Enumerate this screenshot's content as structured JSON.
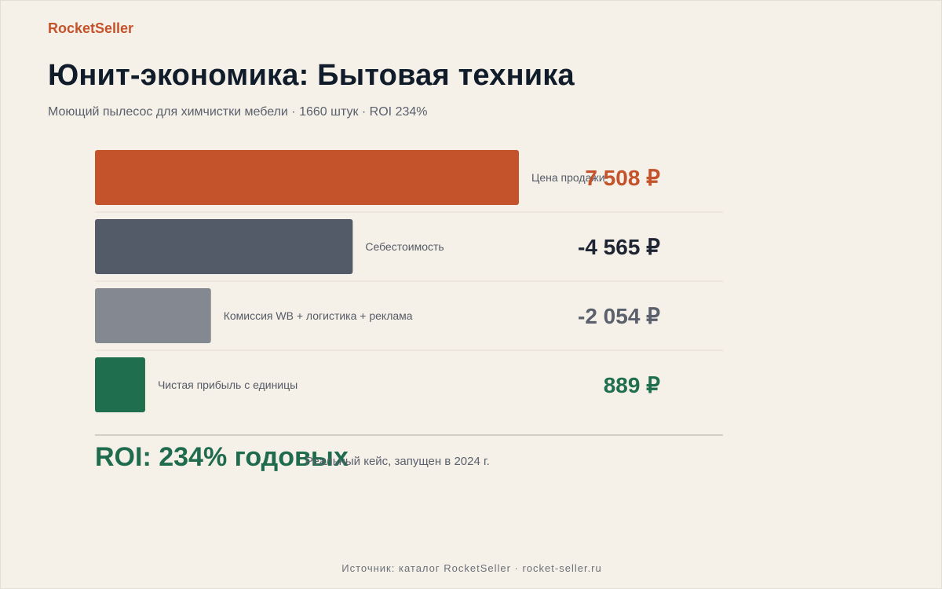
{
  "brand": "RocketSeller",
  "title": "Юнит-экономика: Бытовая техника",
  "subtitle": "Моющий пылесос для химчистки мебели · 1660 штук · ROI 234%",
  "chart_data": {
    "type": "bar",
    "orientation": "horizontal",
    "categories": [
      "Цена продажи",
      "Себестоимость",
      "Комиссия WB + логистика + реклама",
      "Чистая прибыль с единицы"
    ],
    "values": [
      7508,
      4565,
      2054,
      889
    ],
    "value_labels": [
      "7 508 ₽",
      "-4 565 ₽",
      "-2 054 ₽",
      "889 ₽"
    ],
    "colors": [
      "#c4522a",
      "#545b68",
      "#838891",
      "#1f6e4d"
    ],
    "value_colors": [
      "#c4522a",
      "#1e2633",
      "#5b616c",
      "#1f6e4d"
    ],
    "grid": false,
    "legend": "none"
  },
  "summary": {
    "roi": "ROI: 234% годовых",
    "note": "Реальный кейс, запущен в 2024 г."
  },
  "footer": "Источник: каталог RocketSeller · rocket-seller.ru"
}
